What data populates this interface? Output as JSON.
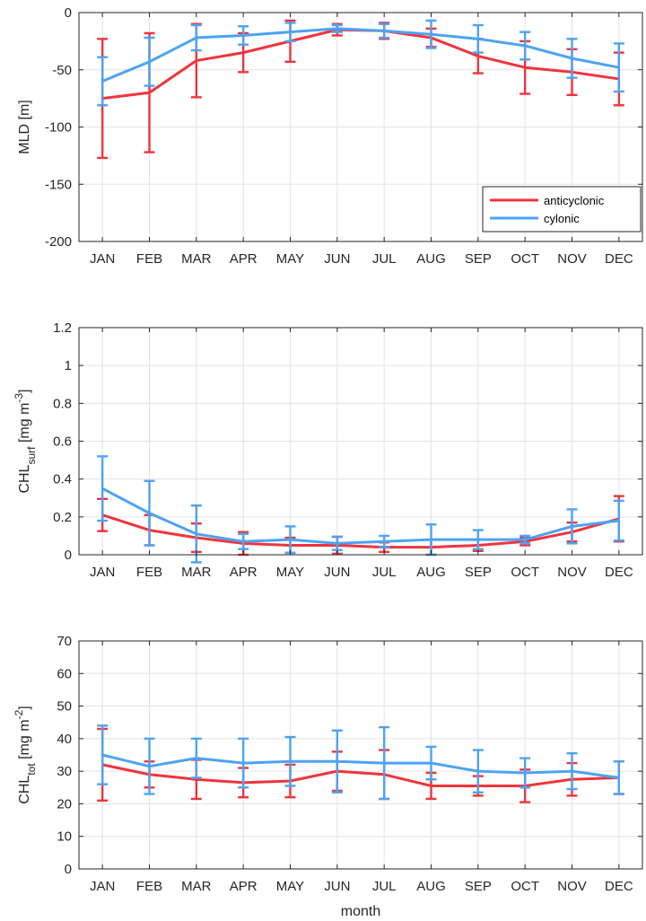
{
  "colors": {
    "anticyclonic": "#f0343c",
    "cyclonic": "#4da3f2",
    "grid": "#e3e3e3",
    "axis": "#262626"
  },
  "chart_data": [
    {
      "type": "line",
      "ylabel": {
        "main": "MLD [m]"
      },
      "xlabel": "",
      "categories": [
        "JAN",
        "FEB",
        "MAR",
        "APR",
        "MAY",
        "JUN",
        "JUL",
        "AUG",
        "SEP",
        "OCT",
        "NOV",
        "DEC"
      ],
      "ylim": [
        -200,
        0
      ],
      "yticks": [
        0,
        -50,
        -100,
        -150,
        -200
      ],
      "grid": true,
      "legend": {
        "position": "bottom-right",
        "entries": [
          "anticyclonic",
          "cylonic"
        ]
      },
      "series": [
        {
          "name": "anticyclonic",
          "color": "#f0343c",
          "values": [
            -75,
            -70,
            -42,
            -35,
            -25,
            -15,
            -16,
            -22,
            -38,
            -48,
            -52,
            -58
          ],
          "err": [
            52,
            52,
            32,
            17,
            18,
            5,
            7,
            8,
            15,
            23,
            20,
            23
          ]
        },
        {
          "name": "cylonic",
          "color": "#4da3f2",
          "values": [
            -60,
            -43,
            -22,
            -20,
            -17,
            -14,
            -16,
            -19,
            -23,
            -29,
            -40,
            -48
          ],
          "err": [
            21,
            21,
            11,
            8,
            8,
            3,
            6,
            12,
            12,
            12,
            17,
            21
          ]
        }
      ]
    },
    {
      "type": "line",
      "ylabel": {
        "main": "CHL",
        "sub": "surf",
        "rest": " [mg m",
        "sup": "-3",
        "end": "]"
      },
      "xlabel": "",
      "categories": [
        "JAN",
        "FEB",
        "MAR",
        "APR",
        "MAY",
        "JUN",
        "JUL",
        "AUG",
        "SEP",
        "OCT",
        "NOV",
        "DEC"
      ],
      "ylim": [
        0,
        1.2
      ],
      "yticks": [
        0,
        0.2,
        0.4,
        0.6,
        0.8,
        1,
        1.2
      ],
      "grid": true,
      "series": [
        {
          "name": "anticyclonic",
          "color": "#f0343c",
          "values": [
            0.21,
            0.13,
            0.09,
            0.06,
            0.05,
            0.05,
            0.04,
            0.04,
            0.05,
            0.07,
            0.12,
            0.19
          ],
          "err": [
            0.085,
            0.08,
            0.075,
            0.06,
            0.04,
            0.045,
            0.025,
            0.04,
            0.03,
            0.02,
            0.05,
            0.12
          ]
        },
        {
          "name": "cylonic",
          "color": "#4da3f2",
          "values": [
            0.35,
            0.22,
            0.11,
            0.07,
            0.08,
            0.06,
            0.07,
            0.08,
            0.08,
            0.08,
            0.15,
            0.18
          ],
          "err": [
            0.17,
            0.17,
            0.15,
            0.04,
            0.07,
            0.035,
            0.03,
            0.08,
            0.05,
            0.02,
            0.09,
            0.105
          ]
        }
      ]
    },
    {
      "type": "line",
      "ylabel": {
        "main": "CHL",
        "sub": "tot",
        "rest": " [mg m",
        "sup": "-2",
        "end": "]"
      },
      "xlabel": "month",
      "categories": [
        "JAN",
        "FEB",
        "MAR",
        "APR",
        "MAY",
        "JUN",
        "JUL",
        "AUG",
        "SEP",
        "OCT",
        "NOV",
        "DEC"
      ],
      "ylim": [
        0,
        70
      ],
      "yticks": [
        0,
        10,
        20,
        30,
        40,
        50,
        60,
        70
      ],
      "grid": true,
      "series": [
        {
          "name": "anticyclonic",
          "color": "#f0343c",
          "values": [
            32,
            29,
            27.5,
            26.5,
            27,
            30,
            29,
            25.5,
            25.5,
            25.5,
            27.5,
            28
          ],
          "err": [
            11,
            4,
            6,
            4.5,
            5,
            6,
            7.5,
            4,
            3,
            5,
            5,
            5
          ]
        },
        {
          "name": "cylonic",
          "color": "#4da3f2",
          "values": [
            35,
            31.5,
            34,
            32.5,
            33,
            33,
            32.5,
            32.5,
            30,
            29.5,
            30,
            28
          ],
          "err": [
            9,
            8.5,
            6,
            7.5,
            7.5,
            9.5,
            11,
            5,
            6.5,
            4.5,
            5.5,
            5
          ]
        }
      ]
    }
  ]
}
